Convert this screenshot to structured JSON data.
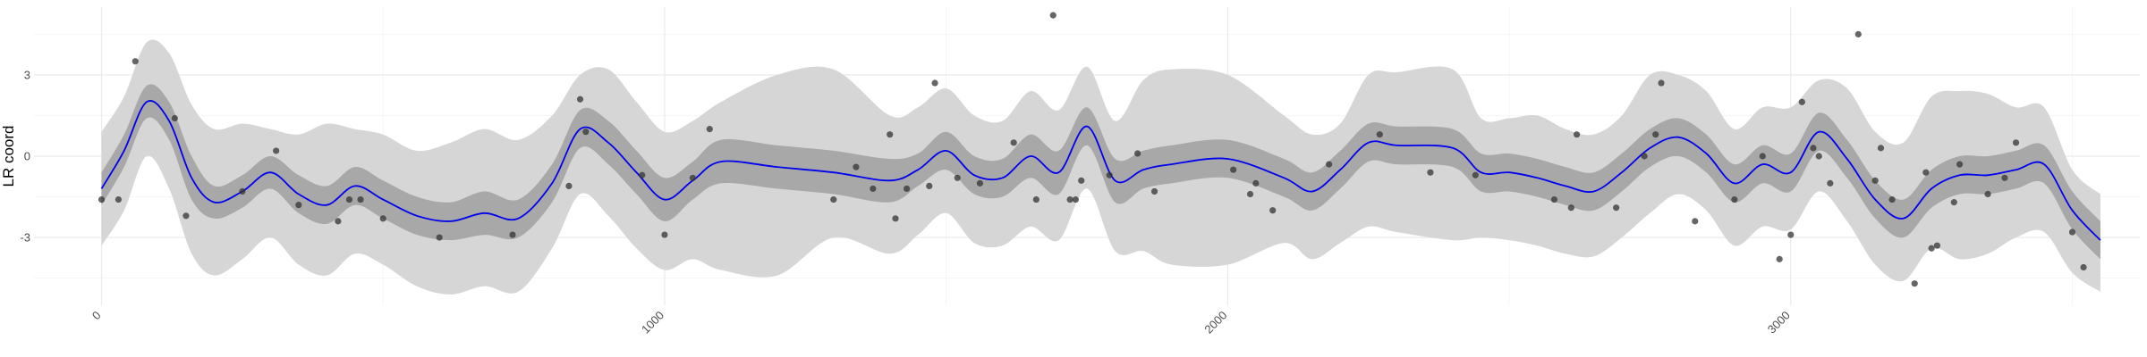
{
  "chart_data": {
    "type": "line",
    "title": "",
    "xlabel": "",
    "ylabel": "LR coord",
    "xlim": [
      -120,
      3620
    ],
    "ylim": [
      -5.5,
      5.5
    ],
    "x_ticks": [
      0,
      1000,
      2000,
      3000
    ],
    "x_tick_labels": [
      "0",
      "1000",
      "2000",
      "3000"
    ],
    "y_ticks": [
      -3,
      0,
      3
    ],
    "y_tick_labels": [
      "-3",
      "0",
      "3"
    ],
    "grid": true,
    "legend": "none",
    "colors": {
      "mean_line": "#0000ee",
      "inner_band": "#a8a8a8",
      "outer_band": "#d6d6d6",
      "points": "#333333"
    },
    "series": [
      {
        "kind": "mean",
        "x": [
          0,
          40,
          80,
          120,
          160,
          200,
          250,
          300,
          350,
          400,
          450,
          500,
          560,
          620,
          680,
          740,
          800,
          850,
          900,
          950,
          1000,
          1050,
          1100,
          1200,
          1300,
          1400,
          1450,
          1500,
          1550,
          1600,
          1650,
          1700,
          1750,
          1800,
          1850,
          1900,
          2000,
          2100,
          2150,
          2200,
          2250,
          2300,
          2400,
          2450,
          2500,
          2550,
          2600,
          2650,
          2700,
          2750,
          2800,
          2850,
          2900,
          2950,
          3000,
          3050,
          3100,
          3150,
          3200,
          3250,
          3300,
          3350,
          3400,
          3450,
          3500,
          3550
        ],
        "y": [
          -1.2,
          0.2,
          2.0,
          1.3,
          -0.8,
          -1.7,
          -1.3,
          -0.6,
          -1.4,
          -1.8,
          -1.1,
          -1.6,
          -2.2,
          -2.4,
          -2.1,
          -2.3,
          -1.0,
          1.0,
          0.5,
          -0.6,
          -1.6,
          -0.9,
          -0.2,
          -0.4,
          -0.6,
          -0.9,
          -0.5,
          0.2,
          -0.7,
          -0.8,
          0.0,
          -0.6,
          1.1,
          -0.9,
          -0.5,
          -0.3,
          -0.1,
          -0.8,
          -1.3,
          -0.5,
          0.5,
          0.4,
          0.3,
          -0.6,
          -0.6,
          -0.8,
          -1.1,
          -1.3,
          -0.6,
          0.3,
          0.7,
          0.1,
          -1.0,
          -0.3,
          -0.6,
          0.9,
          -0.1,
          -1.6,
          -2.3,
          -1.2,
          -0.7,
          -0.7,
          -0.5,
          -0.3,
          -2.0,
          -3.1
        ],
        "inner_lower": [
          -1.8,
          -0.4,
          1.4,
          0.6,
          -1.6,
          -2.3,
          -1.9,
          -1.2,
          -2.1,
          -2.5,
          -1.8,
          -2.3,
          -2.9,
          -3.1,
          -2.9,
          -3.0,
          -1.7,
          0.3,
          -0.3,
          -1.4,
          -2.4,
          -1.6,
          -1.0,
          -1.2,
          -1.4,
          -1.7,
          -1.1,
          -0.5,
          -1.4,
          -1.5,
          -0.8,
          -1.4,
          0.4,
          -1.7,
          -1.2,
          -1.0,
          -0.8,
          -1.5,
          -2.0,
          -1.2,
          -0.2,
          -0.3,
          -0.4,
          -1.3,
          -1.3,
          -1.5,
          -1.8,
          -2.0,
          -1.3,
          -0.4,
          0.0,
          -0.6,
          -1.7,
          -1.0,
          -1.3,
          0.2,
          -0.8,
          -2.3,
          -3.0,
          -1.9,
          -1.4,
          -1.4,
          -1.2,
          -1.0,
          -2.7,
          -3.8
        ],
        "inner_upper": [
          -0.6,
          0.8,
          2.6,
          2.0,
          0.0,
          -1.1,
          -0.7,
          0.0,
          -0.7,
          -1.1,
          -0.4,
          -0.9,
          -1.5,
          -1.7,
          -1.3,
          -1.6,
          -0.3,
          1.7,
          1.3,
          0.2,
          -0.8,
          -0.2,
          0.6,
          0.4,
          0.2,
          -0.1,
          0.1,
          0.9,
          0.0,
          -0.1,
          0.8,
          0.2,
          1.8,
          -0.1,
          0.2,
          0.4,
          0.6,
          -0.1,
          -0.6,
          0.2,
          1.2,
          1.1,
          1.0,
          0.1,
          0.1,
          -0.1,
          -0.4,
          -0.6,
          0.1,
          1.0,
          1.4,
          0.8,
          -0.3,
          0.4,
          0.1,
          1.6,
          0.6,
          -0.9,
          -1.6,
          -0.5,
          0.0,
          0.0,
          0.2,
          0.4,
          -1.3,
          -2.4
        ],
        "outer_lower": [
          -3.3,
          -2.0,
          0.0,
          -1.2,
          -3.6,
          -4.4,
          -3.8,
          -3.0,
          -4.0,
          -4.4,
          -3.6,
          -4.0,
          -4.8,
          -5.1,
          -4.8,
          -5.0,
          -3.4,
          -1.4,
          -2.2,
          -3.4,
          -4.2,
          -3.8,
          -4.2,
          -4.4,
          -3.0,
          -3.6,
          -2.9,
          -2.1,
          -3.2,
          -3.3,
          -2.6,
          -3.1,
          -1.2,
          -3.5,
          -3.5,
          -4.0,
          -4.0,
          -3.2,
          -3.8,
          -3.2,
          -2.6,
          -2.8,
          -3.1,
          -3.0,
          -3.1,
          -3.3,
          -3.6,
          -3.7,
          -3.0,
          -2.1,
          -1.4,
          -2.0,
          -3.3,
          -2.6,
          -2.7,
          -1.3,
          -2.4,
          -4.0,
          -4.6,
          -3.4,
          -3.8,
          -3.6,
          -3.0,
          -2.8,
          -4.3,
          -5.0
        ],
        "outer_upper": [
          0.9,
          2.2,
          4.2,
          3.8,
          1.9,
          1.0,
          1.2,
          1.0,
          0.8,
          1.2,
          1.0,
          0.8,
          0.2,
          0.5,
          1.0,
          0.6,
          1.5,
          3.0,
          3.2,
          2.0,
          0.9,
          1.3,
          2.0,
          3.0,
          3.2,
          1.5,
          1.8,
          2.5,
          1.5,
          1.3,
          2.4,
          1.7,
          3.3,
          1.3,
          2.8,
          3.2,
          3.0,
          1.5,
          0.8,
          1.2,
          3.0,
          3.1,
          3.2,
          1.4,
          1.4,
          1.5,
          1.0,
          0.8,
          1.5,
          3.0,
          3.0,
          2.4,
          1.0,
          1.8,
          1.8,
          2.8,
          2.5,
          0.9,
          0.5,
          2.2,
          2.4,
          2.3,
          1.8,
          1.8,
          -0.5,
          -1.4
        ]
      },
      {
        "kind": "points",
        "x": [
          0,
          30,
          60,
          130,
          150,
          250,
          310,
          350,
          420,
          440,
          460,
          500,
          600,
          730,
          830,
          850,
          860,
          960,
          1000,
          1050,
          1080,
          1300,
          1340,
          1370,
          1400,
          1410,
          1430,
          1470,
          1480,
          1520,
          1560,
          1620,
          1660,
          1690,
          1720,
          1730,
          1740,
          1790,
          1840,
          1870,
          2010,
          2040,
          2050,
          2080,
          2180,
          2270,
          2360,
          2440,
          2580,
          2610,
          2620,
          2690,
          2740,
          2760,
          2770,
          2830,
          2900,
          2950,
          2980,
          3000,
          3020,
          3040,
          3050,
          3070,
          3120,
          3150,
          3160,
          3180,
          3220,
          3240,
          3250,
          3260,
          3290,
          3300,
          3350,
          3380,
          3400,
          3500,
          3520
        ],
        "y": [
          -1.6,
          -1.6,
          3.5,
          1.4,
          -2.2,
          -1.3,
          0.2,
          -1.8,
          -2.4,
          -1.6,
          -1.6,
          -2.3,
          -3.0,
          -2.9,
          -1.1,
          2.1,
          0.9,
          -0.7,
          -2.9,
          -0.8,
          1.0,
          -1.6,
          -0.4,
          -1.2,
          0.8,
          -2.3,
          -1.2,
          -1.1,
          2.7,
          -0.8,
          -1.0,
          0.5,
          -1.6,
          5.2,
          -1.6,
          -1.6,
          -0.9,
          -0.7,
          0.1,
          -1.3,
          -0.5,
          -1.4,
          -1.0,
          -2.0,
          -0.3,
          0.8,
          -0.6,
          -0.7,
          -1.6,
          -1.9,
          0.8,
          -1.9,
          0.0,
          0.8,
          2.7,
          -2.4,
          -1.6,
          0.0,
          -3.8,
          -2.9,
          2.0,
          0.3,
          0.0,
          -1.0,
          4.5,
          -0.9,
          0.3,
          -1.6,
          -4.7,
          -0.6,
          -3.4,
          -3.3,
          -1.7,
          -0.3,
          -1.4,
          -0.8,
          0.5,
          -2.8,
          -4.1
        ]
      }
    ]
  }
}
